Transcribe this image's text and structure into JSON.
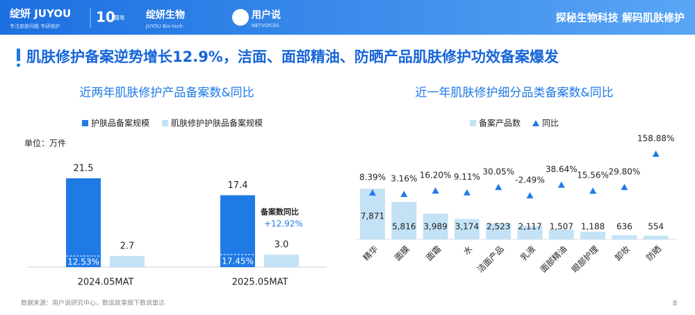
{
  "header": {
    "brand": "绽妍 JUYOU",
    "brand_slogan": "专注皮肤问题 专研修护",
    "anniversary": "10",
    "anniversary_note": "周年",
    "company": "绽妍生物",
    "company_en": "JUYOU Bio-tech",
    "partner": "用户说",
    "partner_en": "NETVOICES",
    "tagline": "探秘生物科技 解码肌肤修护"
  },
  "headline": "肌肤修护备案逆势增长12.9%，洁面、面部精油、防晒产品肌肤修护功效备案爆发",
  "chart_data": [
    {
      "type": "bar",
      "title": "近两年肌肤修护产品备案数&同比",
      "unit": "单位：万件",
      "categories": [
        "2024.05MAT",
        "2025.05MAT"
      ],
      "series": [
        {
          "name": "护肤品备案规模",
          "color": "#1f7ae6",
          "values": [
            21.5,
            17.4
          ]
        },
        {
          "name": "肌肤修护护肤品备案规模",
          "color": "#c3e2f6",
          "values": [
            2.7,
            3.0
          ],
          "value_labels": [
            "2.7",
            "3.0"
          ]
        }
      ],
      "share_values": [
        12.53,
        17.45
      ],
      "share_labels": [
        "12.53%",
        "17.45%"
      ],
      "annotation": {
        "label": "备案数同比",
        "value": "+12.92%"
      }
    },
    {
      "type": "combo",
      "title": "近一年肌肤修护细分品类备案数&同比",
      "categories": [
        "精华",
        "面膜",
        "面霜",
        "水",
        "洁面产品",
        "乳液",
        "面部精油",
        "眼部护理",
        "卸妆",
        "防晒"
      ],
      "series": [
        {
          "name": "备案产品数",
          "color": "#c3e2f6",
          "values": [
            7871,
            5816,
            3989,
            3174,
            2523,
            2117,
            1507,
            1188,
            636,
            554
          ],
          "value_labels": [
            "7,871",
            "5,816",
            "3,989",
            "3,174",
            "2,523",
            "2,117",
            "1,507",
            "1,188",
            "636",
            "554"
          ]
        },
        {
          "name": "同比",
          "color": "#1f7ae6",
          "axis": "y2",
          "values": [
            8.39,
            3.16,
            16.2,
            9.11,
            30.05,
            -2.49,
            38.64,
            15.56,
            29.8,
            158.88
          ],
          "value_labels": [
            "8.39%",
            "3.16%",
            "16.20%",
            "9.11%",
            "30.05%",
            "-2.49%",
            "38.64%",
            "15.56%",
            "29.80%",
            "158.88%"
          ]
        }
      ]
    }
  ],
  "footer": {
    "source": "数据来源：用户说研究中心，数说故事旗下数说雷达",
    "page": "8"
  }
}
